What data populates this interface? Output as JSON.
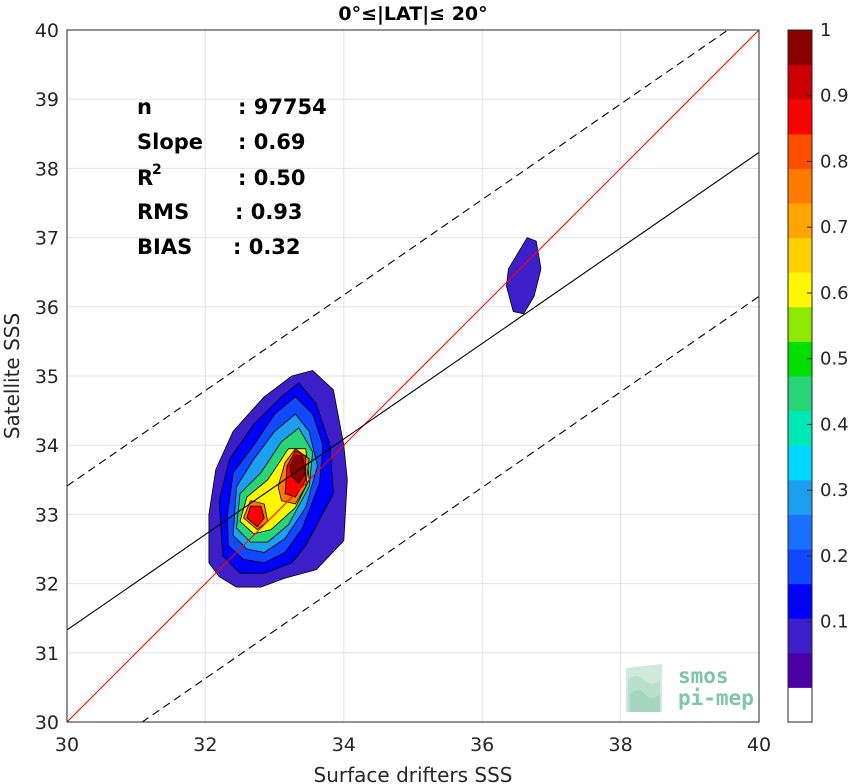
{
  "chart_data": {
    "type": "scatter",
    "title": "0°≤|LAT|≤ 20°",
    "xlabel": "Surface drifters SSS",
    "ylabel": "Satellite SSS",
    "xlim": [
      30,
      40
    ],
    "ylim": [
      30,
      40
    ],
    "x_ticks": [
      "30",
      "32",
      "34",
      "36",
      "38",
      "40"
    ],
    "y_ticks": [
      "30",
      "31",
      "32",
      "33",
      "34",
      "35",
      "36",
      "37",
      "38",
      "39",
      "40"
    ],
    "grid": true,
    "stats": [
      {
        "label": "n",
        "value": ": 97754"
      },
      {
        "label": "Slope",
        "value": ": 0.69"
      },
      {
        "label": "R",
        "sup": "2",
        "value": ": 0.50"
      },
      {
        "label": "RMS",
        "value": ": 0.93"
      },
      {
        "label": "BIAS",
        "value": ": 0.32"
      }
    ],
    "reference_lines": [
      {
        "kind": "identity",
        "color": "#ff0000",
        "x": [
          30,
          40
        ],
        "y": [
          30,
          40
        ]
      },
      {
        "kind": "regression",
        "color": "#000000",
        "x": [
          30,
          40
        ],
        "y": [
          31.33,
          38.23
        ]
      },
      {
        "kind": "upper-bound",
        "color": "#000000",
        "dash": true,
        "x": [
          30,
          40
        ],
        "y": [
          33.41,
          40.31
        ]
      },
      {
        "kind": "lower-bound",
        "color": "#000000",
        "dash": true,
        "x": [
          30,
          40
        ],
        "y": [
          29.25,
          36.15
        ]
      }
    ],
    "density_contours": {
      "levels": [
        0.05,
        0.1,
        0.15,
        0.2,
        0.25,
        0.3,
        0.35,
        0.4,
        0.45,
        0.5,
        0.55,
        0.6,
        0.65,
        0.7,
        0.75,
        0.8,
        0.85,
        0.9,
        0.95
      ],
      "clusters": [
        {
          "center": [
            33.0,
            33.5
          ],
          "polygons": [
            {
              "level": 0.05,
              "points": [
                [
                  32.05,
                  32.3
                ],
                [
                  32.2,
                  32.1
                ],
                [
                  32.45,
                  31.95
                ],
                [
                  32.8,
                  31.95
                ],
                [
                  33.15,
                  32.08
                ],
                [
                  33.6,
                  32.2
                ],
                [
                  34.0,
                  32.62
                ],
                [
                  34.05,
                  33.5
                ],
                [
                  34.0,
                  34.0
                ],
                [
                  33.85,
                  34.8
                ],
                [
                  33.55,
                  35.08
                ],
                [
                  33.25,
                  35.0
                ],
                [
                  32.85,
                  34.7
                ],
                [
                  32.4,
                  34.2
                ],
                [
                  32.15,
                  33.65
                ],
                [
                  32.05,
                  33.0
                ]
              ]
            },
            {
              "level": 0.1,
              "points": [
                [
                  32.25,
                  32.4
                ],
                [
                  32.5,
                  32.15
                ],
                [
                  32.85,
                  32.15
                ],
                [
                  33.25,
                  32.3
                ],
                [
                  33.45,
                  32.55
                ],
                [
                  33.85,
                  33.3
                ],
                [
                  33.8,
                  34.0
                ],
                [
                  33.6,
                  34.6
                ],
                [
                  33.35,
                  34.9
                ],
                [
                  33.1,
                  34.7
                ],
                [
                  32.7,
                  34.3
                ],
                [
                  32.35,
                  33.8
                ],
                [
                  32.2,
                  33.2
                ]
              ]
            },
            {
              "level": 0.15,
              "points": [
                [
                  32.33,
                  32.55
                ],
                [
                  32.55,
                  32.35
                ],
                [
                  32.85,
                  32.3
                ],
                [
                  33.15,
                  32.45
                ],
                [
                  33.4,
                  32.8
                ],
                [
                  33.65,
                  33.45
                ],
                [
                  33.7,
                  34.0
                ],
                [
                  33.55,
                  34.45
                ],
                [
                  33.3,
                  34.7
                ],
                [
                  33.0,
                  34.45
                ],
                [
                  32.7,
                  34.0
                ],
                [
                  32.4,
                  33.6
                ],
                [
                  32.32,
                  33.0
                ]
              ]
            },
            {
              "level": 0.25,
              "points": [
                [
                  32.4,
                  32.7
                ],
                [
                  32.6,
                  32.5
                ],
                [
                  32.85,
                  32.45
                ],
                [
                  33.15,
                  32.65
                ],
                [
                  33.45,
                  33.1
                ],
                [
                  33.62,
                  33.7
                ],
                [
                  33.5,
                  34.2
                ],
                [
                  33.3,
                  34.45
                ],
                [
                  33.0,
                  34.2
                ],
                [
                  32.7,
                  33.8
                ],
                [
                  32.45,
                  33.4
                ]
              ]
            },
            {
              "level": 0.4,
              "points": [
                [
                  32.45,
                  32.8
                ],
                [
                  32.65,
                  32.6
                ],
                [
                  32.9,
                  32.6
                ],
                [
                  33.2,
                  32.85
                ],
                [
                  33.5,
                  33.4
                ],
                [
                  33.55,
                  33.9
                ],
                [
                  33.35,
                  34.25
                ],
                [
                  33.1,
                  34.05
                ],
                [
                  32.8,
                  33.6
                ],
                [
                  32.5,
                  33.3
                ]
              ]
            },
            {
              "level": 0.55,
              "points": [
                [
                  32.5,
                  32.9
                ],
                [
                  32.7,
                  32.72
                ],
                [
                  32.95,
                  32.78
                ],
                [
                  33.3,
                  33.1
                ],
                [
                  33.5,
                  33.5
                ],
                [
                  33.45,
                  33.95
                ],
                [
                  33.2,
                  33.95
                ],
                [
                  32.9,
                  33.5
                ],
                [
                  32.6,
                  33.25
                ]
              ]
            },
            {
              "level": 0.7,
              "points": [
                [
                  32.55,
                  32.95
                ],
                [
                  32.75,
                  32.78
                ],
                [
                  32.9,
                  32.9
                ],
                [
                  32.85,
                  33.15
                ],
                [
                  32.65,
                  33.2
                ]
              ]
            },
            {
              "level": 0.7,
              "points": [
                [
                  33.1,
                  33.2
                ],
                [
                  33.3,
                  33.15
                ],
                [
                  33.45,
                  33.4
                ],
                [
                  33.5,
                  33.8
                ],
                [
                  33.3,
                  33.95
                ],
                [
                  33.15,
                  33.75
                ],
                [
                  33.05,
                  33.4
                ]
              ]
            },
            {
              "level": 0.8,
              "points": [
                [
                  32.6,
                  32.95
                ],
                [
                  32.75,
                  32.82
                ],
                [
                  32.85,
                  32.95
                ],
                [
                  32.8,
                  33.12
                ],
                [
                  32.65,
                  33.12
                ]
              ]
            },
            {
              "level": 0.8,
              "points": [
                [
                  33.15,
                  33.3
                ],
                [
                  33.3,
                  33.25
                ],
                [
                  33.45,
                  33.5
                ],
                [
                  33.45,
                  33.85
                ],
                [
                  33.3,
                  33.92
                ],
                [
                  33.18,
                  33.7
                ]
              ]
            },
            {
              "level": 0.95,
              "points": [
                [
                  33.25,
                  33.55
                ],
                [
                  33.35,
                  33.45
                ],
                [
                  33.45,
                  33.6
                ],
                [
                  33.4,
                  33.85
                ],
                [
                  33.3,
                  33.85
                ],
                [
                  33.22,
                  33.7
                ]
              ]
            }
          ]
        },
        {
          "center": [
            36.6,
            36.45
          ],
          "polygons": [
            {
              "level": 0.05,
              "points": [
                [
                  36.35,
                  36.3
                ],
                [
                  36.45,
                  35.93
                ],
                [
                  36.6,
                  35.9
                ],
                [
                  36.75,
                  36.15
                ],
                [
                  36.85,
                  36.55
                ],
                [
                  36.78,
                  36.95
                ],
                [
                  36.65,
                  37.0
                ],
                [
                  36.5,
                  36.75
                ],
                [
                  36.38,
                  36.55
                ]
              ]
            }
          ]
        }
      ]
    },
    "colorbar": {
      "ticks": [
        "0.1",
        "0.2",
        "0.3",
        "0.4",
        "0.5",
        "0.6",
        "0.7",
        "0.8",
        "0.9",
        "1"
      ],
      "colors": [
        "#ffffff",
        "#4d00a6",
        "#3c1fc9",
        "#0000ff",
        "#1248ff",
        "#1b71ff",
        "#1c9ff0",
        "#00d7ff",
        "#00e8b6",
        "#29d477",
        "#00e000",
        "#8fe800",
        "#fff700",
        "#ffd000",
        "#ffa400",
        "#ff7a00",
        "#ff4e00",
        "#ff0000",
        "#cc0000",
        "#8b0000"
      ]
    },
    "logo": {
      "line1": "smos",
      "line2": "pi-mep"
    }
  }
}
